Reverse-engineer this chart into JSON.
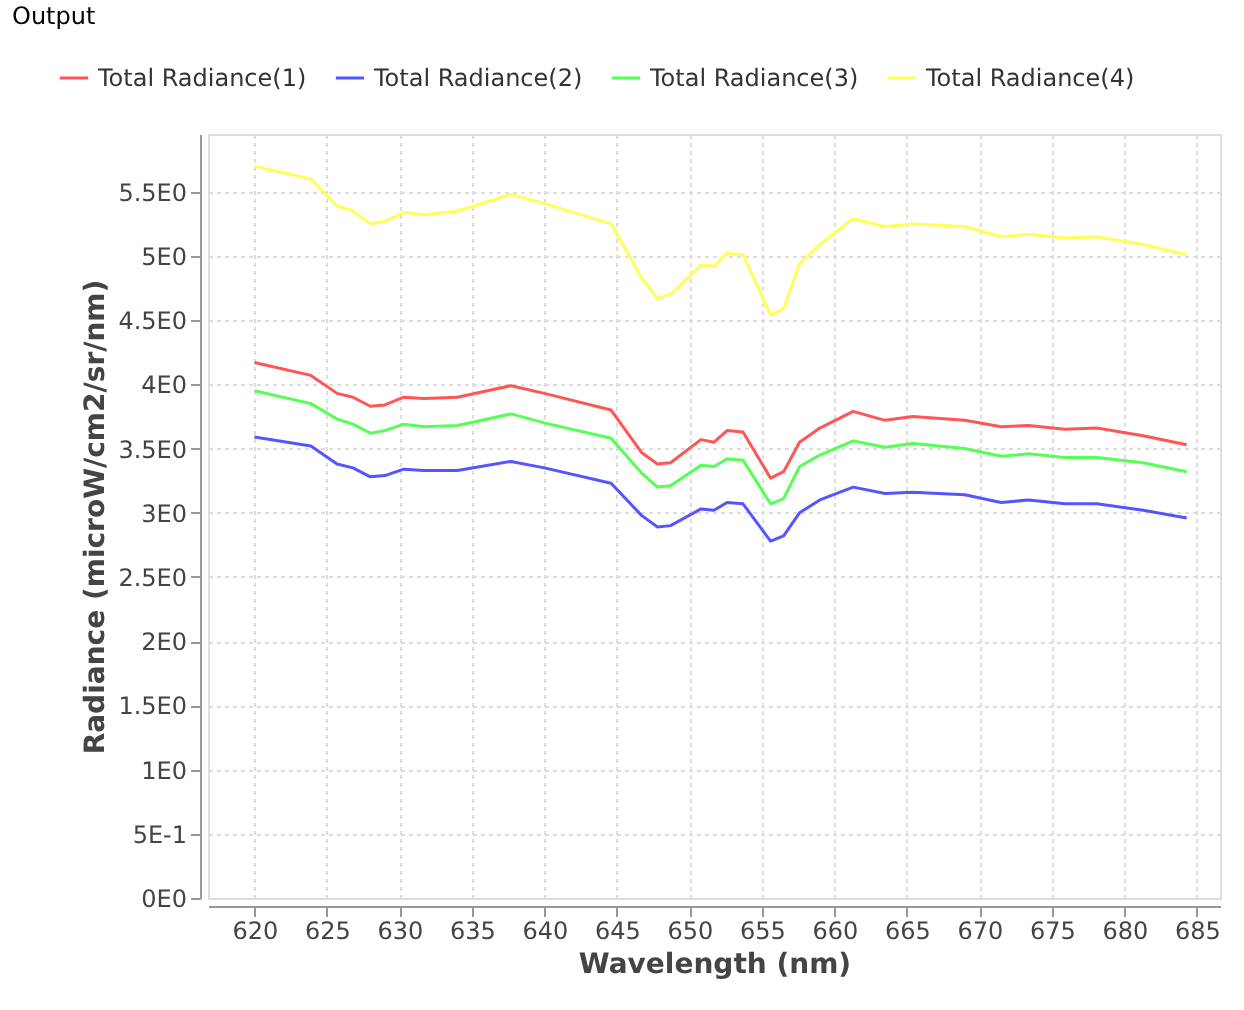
{
  "chart_data": {
    "type": "line",
    "xlabel": "Wavelength (nm)",
    "ylabel": "Radiance (microW/cm2/sr/nm)",
    "annotations": [
      "Output"
    ],
    "x": [
      620,
      623.9,
      625.7,
      626.8,
      628,
      629,
      630.3,
      631.7,
      634,
      637.7,
      640,
      644.6,
      646.7,
      647.8,
      648.7,
      650.8,
      651.7,
      652.6,
      653.7,
      655.6,
      656.5,
      657.6,
      659,
      661.3,
      663.5,
      665.4,
      669,
      671.5,
      673.4,
      675.9,
      678.1,
      681.3,
      684.3
    ],
    "series": [
      {
        "name": "Total Radiance(1)",
        "color": "#ff5555",
        "values": [
          4.17,
          4.07,
          3.93,
          3.9,
          3.83,
          3.84,
          3.9,
          3.89,
          3.9,
          3.99,
          3.93,
          3.8,
          3.47,
          3.38,
          3.39,
          3.57,
          3.55,
          3.64,
          3.63,
          3.27,
          3.32,
          3.55,
          3.66,
          3.79,
          3.72,
          3.75,
          3.72,
          3.67,
          3.68,
          3.65,
          3.66,
          3.6,
          3.53
        ]
      },
      {
        "name": "Total Radiance(2)",
        "color": "#5555ff",
        "values": [
          3.59,
          3.52,
          3.38,
          3.35,
          3.28,
          3.29,
          3.34,
          3.33,
          3.33,
          3.4,
          3.35,
          3.23,
          2.98,
          2.89,
          2.9,
          3.03,
          3.02,
          3.08,
          3.07,
          2.78,
          2.82,
          3.0,
          3.1,
          3.2,
          3.15,
          3.16,
          3.14,
          3.08,
          3.1,
          3.07,
          3.07,
          3.02,
          2.96
        ]
      },
      {
        "name": "Total Radiance(3)",
        "color": "#55ff55",
        "values": [
          3.95,
          3.85,
          3.73,
          3.69,
          3.62,
          3.64,
          3.69,
          3.67,
          3.68,
          3.77,
          3.7,
          3.58,
          3.31,
          3.2,
          3.21,
          3.37,
          3.36,
          3.42,
          3.41,
          3.07,
          3.11,
          3.36,
          3.45,
          3.56,
          3.51,
          3.54,
          3.5,
          3.44,
          3.46,
          3.43,
          3.43,
          3.39,
          3.32
        ]
      },
      {
        "name": "Total Radiance(4)",
        "color": "#ffff55",
        "values": [
          5.7,
          5.6,
          5.39,
          5.35,
          5.25,
          5.27,
          5.34,
          5.32,
          5.35,
          5.48,
          5.41,
          5.25,
          4.83,
          4.67,
          4.7,
          4.93,
          4.92,
          5.02,
          5.01,
          4.54,
          4.59,
          4.94,
          5.09,
          5.29,
          5.23,
          5.25,
          5.23,
          5.15,
          5.17,
          5.14,
          5.15,
          5.09,
          5.01
        ]
      }
    ],
    "xlim": [
      616.8,
      686.6
    ],
    "xticks": [
      620,
      625,
      630,
      635,
      640,
      645,
      650,
      655,
      660,
      665,
      670,
      675,
      680,
      685
    ],
    "ylim": [
      0,
      5.95
    ],
    "yticks": [
      {
        "value": 0,
        "label": "0E0"
      },
      {
        "value": 0.5,
        "label": "5E-1"
      },
      {
        "value": 1,
        "label": "1E0"
      },
      {
        "value": 1.5,
        "label": "1.5E0"
      },
      {
        "value": 2,
        "label": "2E0"
      },
      {
        "value": 2.5,
        "label": "2.5E0"
      },
      {
        "value": 3,
        "label": "3E0"
      },
      {
        "value": 3.5,
        "label": "3.5E0"
      },
      {
        "value": 4,
        "label": "4E0"
      },
      {
        "value": 4.5,
        "label": "4.5E0"
      },
      {
        "value": 5,
        "label": "5E0"
      },
      {
        "value": 5.5,
        "label": "5.5E0"
      }
    ],
    "grid": true,
    "legend": "top",
    "marker": "none",
    "line_style": "solid"
  }
}
